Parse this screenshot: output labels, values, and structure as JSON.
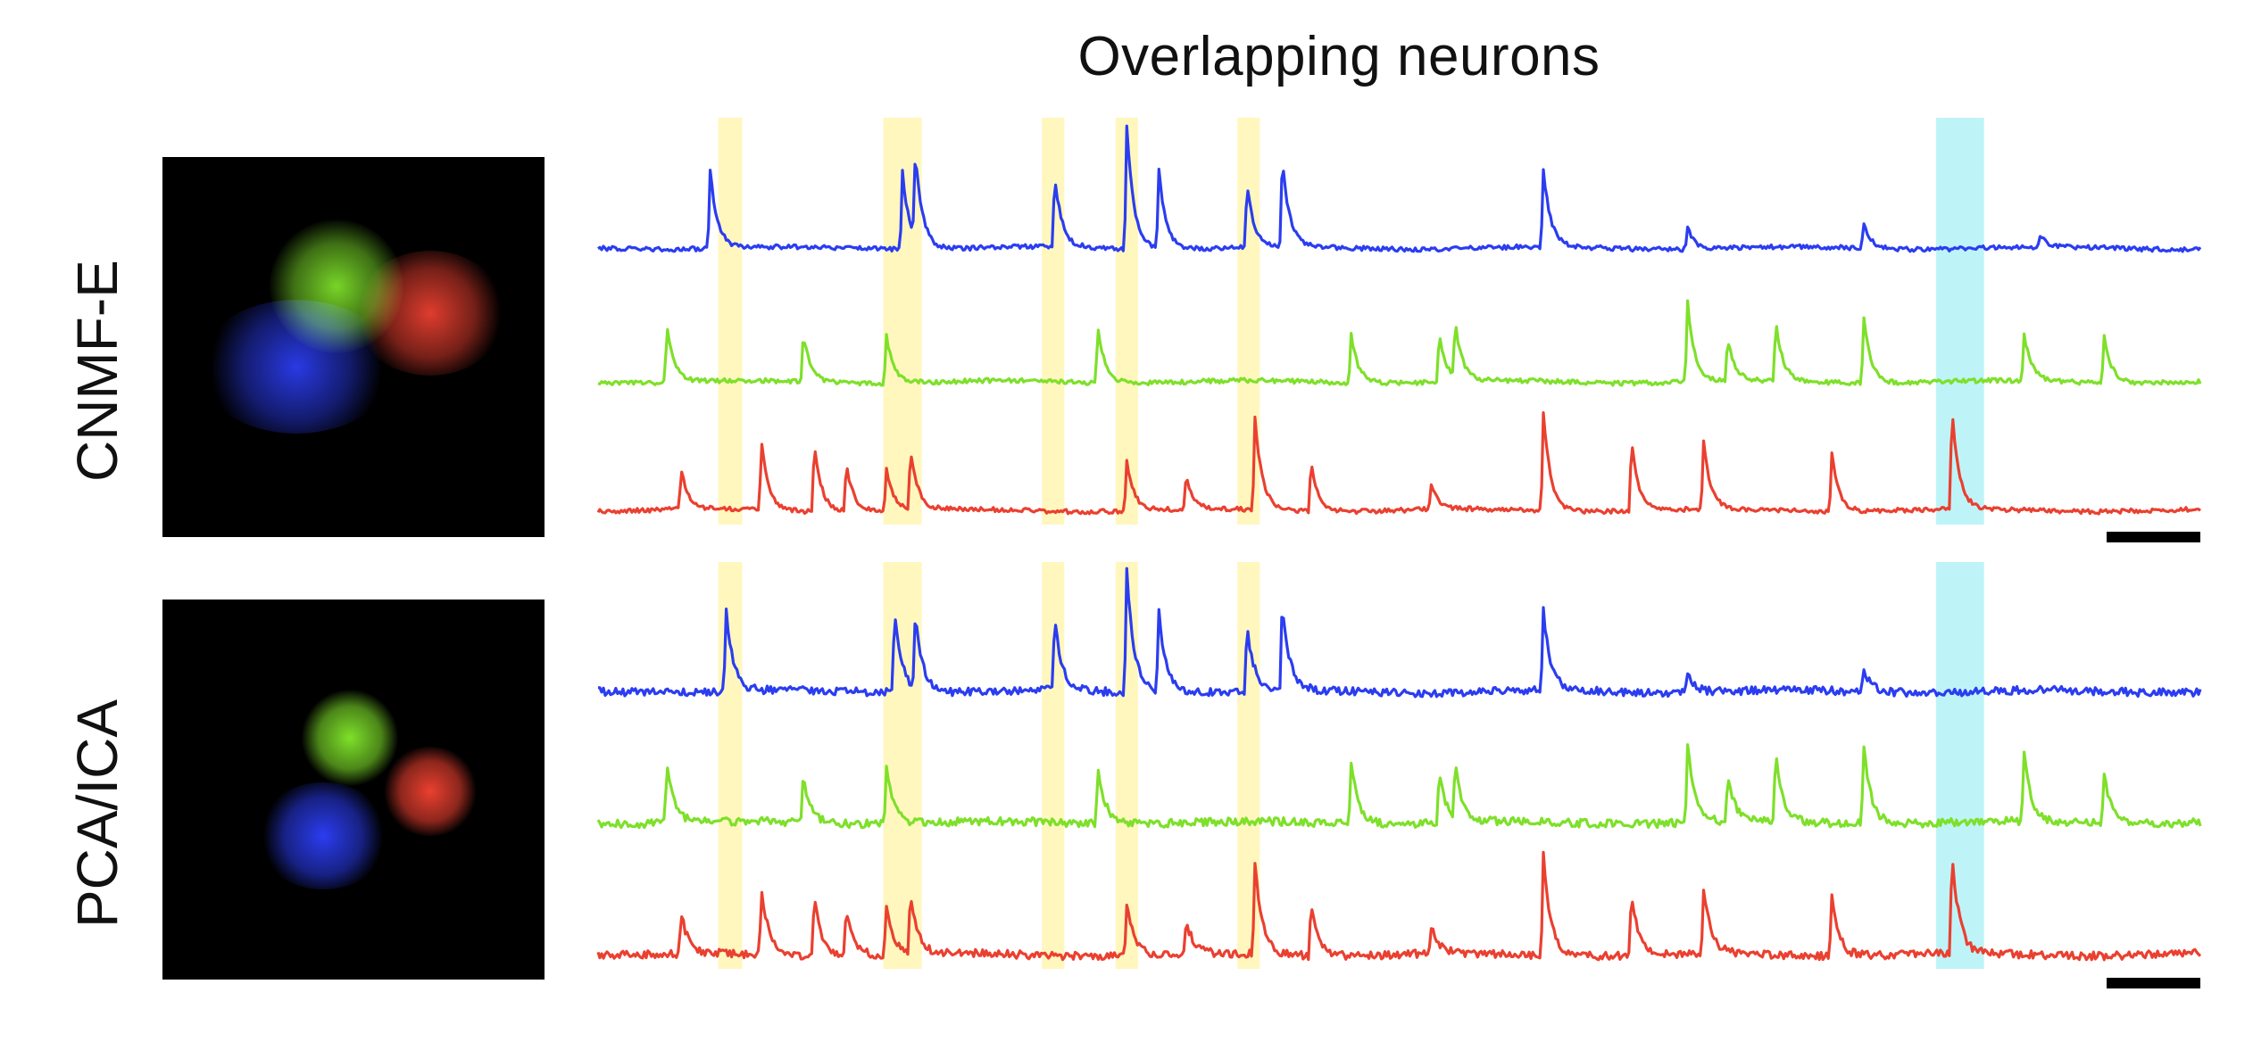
{
  "title": "Overlapping neurons",
  "panels": [
    {
      "label": "CNMF-E"
    },
    {
      "label": "PCA/ICA"
    }
  ],
  "colors": {
    "blue_neuron": "#2b3df0",
    "green_neuron": "#7ee02a",
    "red_neuron": "#ea4030",
    "highlight_yellow": "#fff4a8",
    "highlight_cyan": "#a8f0f6",
    "scale_bar": "#000000"
  },
  "chart_data": [
    {
      "type": "line",
      "panel": "CNMF-E",
      "series": [
        {
          "color": "blue",
          "spikes": [
            [
              0.07,
              0.55
            ],
            [
              0.19,
              0.55
            ],
            [
              0.198,
              0.6
            ],
            [
              0.285,
              0.5
            ],
            [
              0.33,
              0.85
            ],
            [
              0.35,
              0.55
            ],
            [
              0.405,
              0.45
            ],
            [
              0.427,
              0.62
            ],
            [
              0.59,
              0.55
            ],
            [
              0.68,
              0.15
            ],
            [
              0.79,
              0.18
            ],
            [
              0.9,
              0.08
            ]
          ]
        },
        {
          "color": "green",
          "spikes": [
            [
              0.043,
              0.55
            ],
            [
              0.128,
              0.45
            ],
            [
              0.18,
              0.45
            ],
            [
              0.312,
              0.52
            ],
            [
              0.47,
              0.45
            ],
            [
              0.525,
              0.45
            ],
            [
              0.535,
              0.5
            ],
            [
              0.68,
              0.75
            ],
            [
              0.705,
              0.4
            ],
            [
              0.735,
              0.55
            ],
            [
              0.79,
              0.6
            ],
            [
              0.89,
              0.45
            ],
            [
              0.94,
              0.45
            ]
          ]
        },
        {
          "color": "red",
          "spikes": [
            [
              0.052,
              0.3
            ],
            [
              0.102,
              0.52
            ],
            [
              0.135,
              0.5
            ],
            [
              0.155,
              0.35
            ],
            [
              0.18,
              0.3
            ],
            [
              0.195,
              0.45
            ],
            [
              0.33,
              0.38
            ],
            [
              0.367,
              0.25
            ],
            [
              0.41,
              0.7
            ],
            [
              0.445,
              0.38
            ],
            [
              0.52,
              0.2
            ],
            [
              0.59,
              0.75
            ],
            [
              0.645,
              0.52
            ],
            [
              0.69,
              0.5
            ],
            [
              0.77,
              0.45
            ],
            [
              0.845,
              0.75
            ]
          ]
        }
      ],
      "highlight_bands": [
        {
          "color": "yellow",
          "x": [
            0.075,
            0.09
          ]
        },
        {
          "color": "yellow",
          "x": [
            0.178,
            0.202
          ]
        },
        {
          "color": "yellow",
          "x": [
            0.277,
            0.291
          ]
        },
        {
          "color": "yellow",
          "x": [
            0.323,
            0.337
          ]
        },
        {
          "color": "yellow",
          "x": [
            0.399,
            0.413
          ]
        },
        {
          "color": "cyan",
          "x": [
            0.835,
            0.865
          ]
        }
      ],
      "scale_bar": true
    },
    {
      "type": "line",
      "panel": "PCA/ICA",
      "series": [
        {
          "color": "blue",
          "spikes": [
            [
              0.08,
              0.55
            ],
            [
              0.185,
              0.6
            ],
            [
              0.198,
              0.55
            ],
            [
              0.285,
              0.5
            ],
            [
              0.33,
              0.85
            ],
            [
              0.35,
              0.58
            ],
            [
              0.405,
              0.45
            ],
            [
              0.427,
              0.62
            ],
            [
              0.59,
              0.55
            ],
            [
              0.68,
              0.15
            ],
            [
              0.79,
              0.15
            ]
          ]
        },
        {
          "color": "green",
          "spikes": [
            [
              0.043,
              0.55
            ],
            [
              0.128,
              0.45
            ],
            [
              0.18,
              0.55
            ],
            [
              0.312,
              0.55
            ],
            [
              0.47,
              0.6
            ],
            [
              0.525,
              0.45
            ],
            [
              0.535,
              0.5
            ],
            [
              0.68,
              0.75
            ],
            [
              0.705,
              0.45
            ],
            [
              0.735,
              0.65
            ],
            [
              0.79,
              0.75
            ],
            [
              0.89,
              0.65
            ],
            [
              0.94,
              0.45
            ]
          ]
        },
        {
          "color": "red",
          "spikes": [
            [
              0.052,
              0.3
            ],
            [
              0.102,
              0.5
            ],
            [
              0.135,
              0.45
            ],
            [
              0.155,
              0.35
            ],
            [
              0.18,
              0.35
            ],
            [
              0.195,
              0.45
            ],
            [
              0.33,
              0.38
            ],
            [
              0.367,
              0.25
            ],
            [
              0.41,
              0.7
            ],
            [
              0.445,
              0.38
            ],
            [
              0.52,
              0.2
            ],
            [
              0.59,
              0.75
            ],
            [
              0.645,
              0.48
            ],
            [
              0.69,
              0.5
            ],
            [
              0.77,
              0.45
            ],
            [
              0.845,
              0.75
            ]
          ]
        }
      ],
      "highlight_bands": [
        {
          "color": "yellow",
          "x": [
            0.075,
            0.09
          ]
        },
        {
          "color": "yellow",
          "x": [
            0.178,
            0.202
          ]
        },
        {
          "color": "yellow",
          "x": [
            0.277,
            0.291
          ]
        },
        {
          "color": "yellow",
          "x": [
            0.323,
            0.337
          ]
        },
        {
          "color": "yellow",
          "x": [
            0.399,
            0.413
          ]
        },
        {
          "color": "cyan",
          "x": [
            0.835,
            0.865
          ]
        }
      ],
      "scale_bar": true
    }
  ]
}
